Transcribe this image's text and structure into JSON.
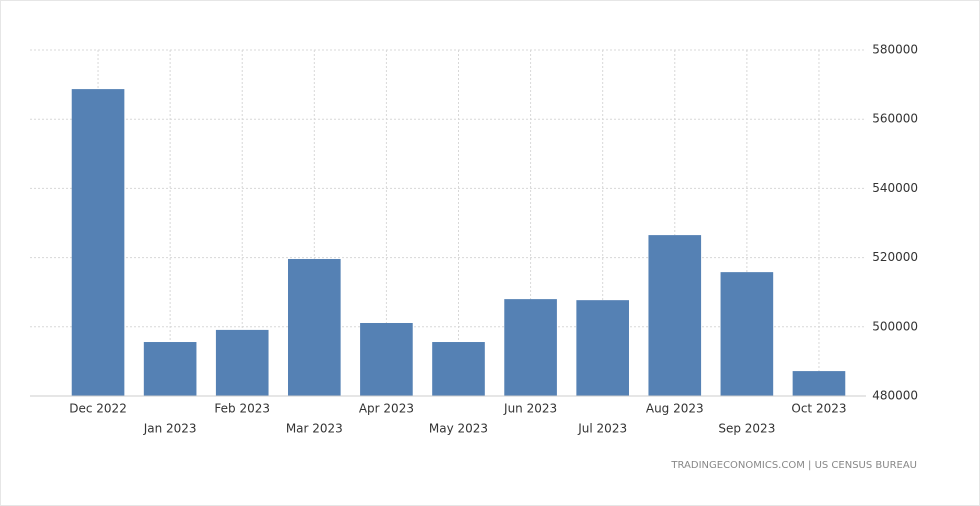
{
  "chart_data": {
    "type": "bar",
    "categories": [
      "Dec 2022",
      "Jan 2023",
      "Feb 2023",
      "Mar 2023",
      "Apr 2023",
      "May 2023",
      "Jun 2023",
      "Jul 2023",
      "Aug 2023",
      "Sep 2023",
      "Oct 2023"
    ],
    "values": [
      568700,
      495600,
      499100,
      519600,
      501100,
      495600,
      508000,
      507700,
      526500,
      515800,
      487200
    ],
    "color": "#5581b4",
    "ylim": [
      480000,
      580000
    ],
    "yticks": [
      480000,
      500000,
      520000,
      540000,
      560000,
      580000
    ],
    "grid": true,
    "source": "TRADINGECONOMICS.COM | US CENSUS BUREAU"
  }
}
